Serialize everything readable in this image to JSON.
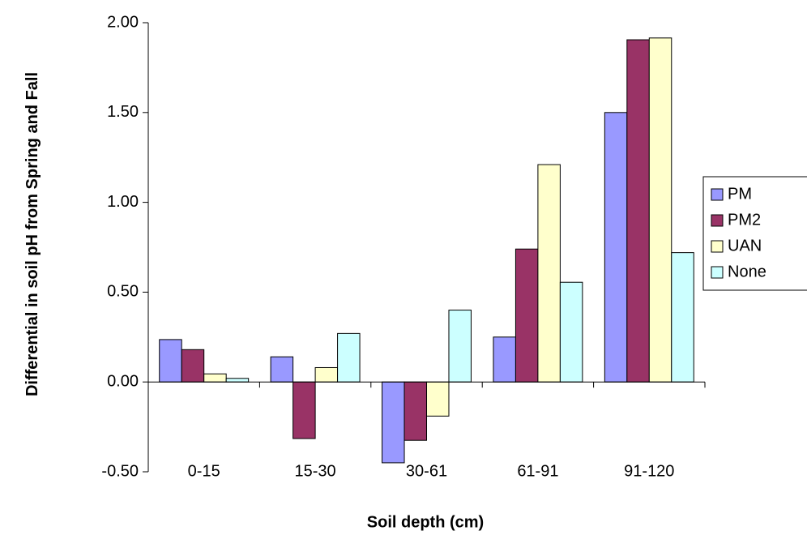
{
  "chart_data": {
    "type": "bar",
    "x_label": "Soil depth (cm)",
    "y_label": "Differential in soil pH from Spring and Fall",
    "categories": [
      "0-15",
      "15-30",
      "30-61",
      "61-91",
      "91-120"
    ],
    "series": [
      {
        "name": "PM",
        "color": "#9999ff",
        "values": [
          0.236,
          0.14,
          -0.45,
          0.25,
          1.5
        ]
      },
      {
        "name": "PM2",
        "color": "#993366",
        "values": [
          0.18,
          -0.315,
          -0.325,
          0.74,
          1.905
        ]
      },
      {
        "name": "UAN",
        "color": "#ffffcc",
        "values": [
          0.045,
          0.08,
          -0.19,
          1.21,
          1.915
        ]
      },
      {
        "name": "None",
        "color": "#ccffff",
        "values": [
          0.02,
          0.27,
          0.4,
          0.555,
          0.72
        ]
      }
    ],
    "ylim": [
      -0.5,
      2.0
    ],
    "yticks": [
      {
        "value": -0.5,
        "label": "-0.50"
      },
      {
        "value": 0,
        "label": "0.00"
      },
      {
        "value": 0.5,
        "label": "0.50"
      },
      {
        "value": 1.0,
        "label": "1.00"
      },
      {
        "value": 1.5,
        "label": "1.50"
      },
      {
        "value": 2.0,
        "label": "2.00"
      }
    ],
    "legend": "right"
  }
}
